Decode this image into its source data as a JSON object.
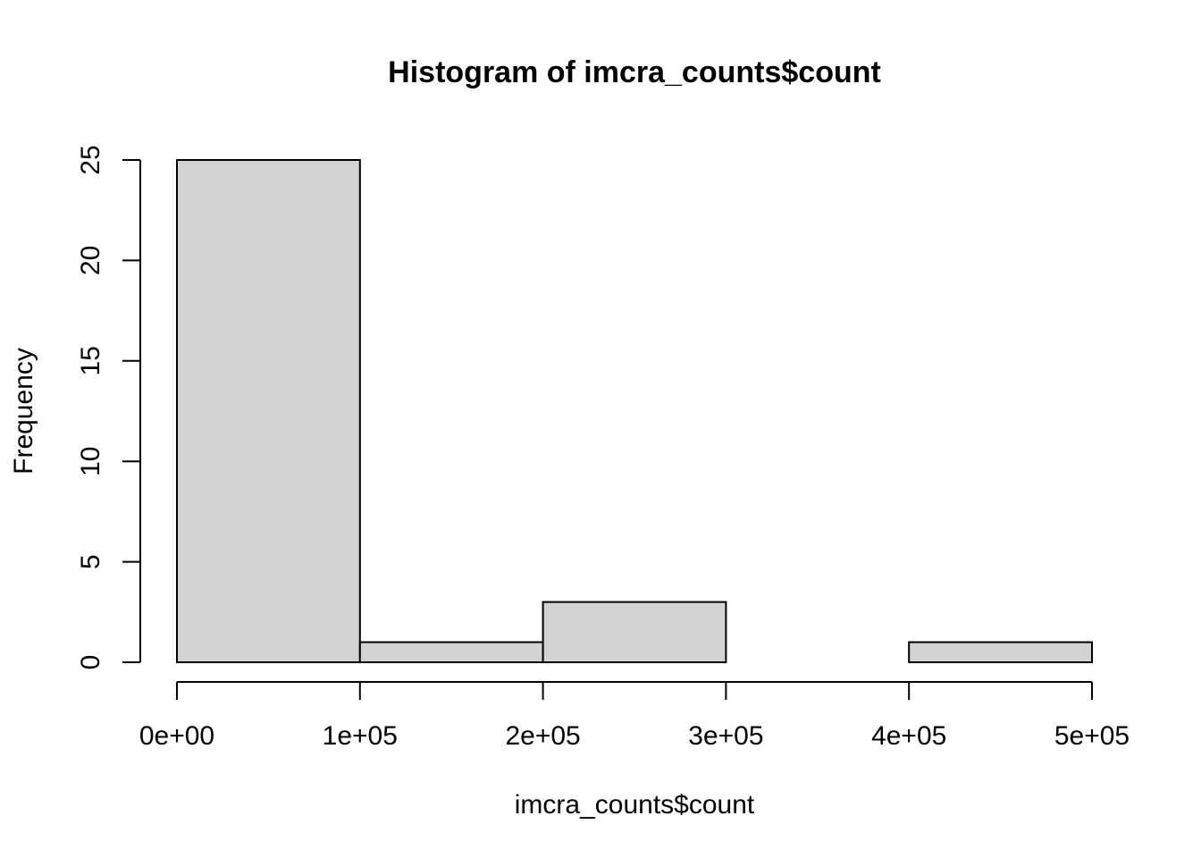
{
  "chart_data": {
    "type": "bar",
    "subtype": "histogram",
    "title": "Histogram of imcra_counts$count",
    "xlabel": "imcra_counts$count",
    "ylabel": "Frequency",
    "bins": [
      {
        "start": 0,
        "end": 100000,
        "count": 25
      },
      {
        "start": 100000,
        "end": 200000,
        "count": 1
      },
      {
        "start": 200000,
        "end": 300000,
        "count": 3
      },
      {
        "start": 300000,
        "end": 400000,
        "count": 0
      },
      {
        "start": 400000,
        "end": 500000,
        "count": 1
      }
    ],
    "xlim": [
      0,
      500000
    ],
    "ylim": [
      0,
      25
    ],
    "x_ticks": [
      0,
      100000,
      200000,
      300000,
      400000,
      500000
    ],
    "x_tick_labels": [
      "0e+00",
      "1e+05",
      "2e+05",
      "3e+05",
      "4e+05",
      "5e+05"
    ],
    "y_ticks": [
      0,
      5,
      10,
      15,
      20,
      25
    ],
    "y_tick_labels": [
      "0",
      "5",
      "10",
      "15",
      "20",
      "25"
    ],
    "grid": false,
    "bar_fill": "#d3d3d3",
    "bar_stroke": "#000000"
  }
}
